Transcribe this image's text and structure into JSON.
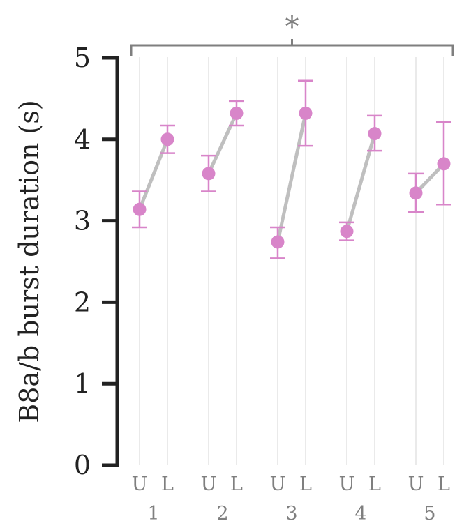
{
  "chart_data": {
    "type": "scatter",
    "ylabel": "B8a/b burst duration (s)",
    "ylim": [
      0,
      5
    ],
    "yticks": [
      "0",
      "1",
      "2",
      "3",
      "4",
      "5"
    ],
    "conditions": [
      "U",
      "L"
    ],
    "groups": [
      "1",
      "2",
      "3",
      "4",
      "5"
    ],
    "series": [
      {
        "values": [
          {
            "group": "1",
            "U": 3.14,
            "U_err": [
              2.92,
              3.36
            ],
            "L": 4.0,
            "L_err": [
              3.83,
              4.17
            ]
          },
          {
            "group": "2",
            "U": 3.58,
            "U_err": [
              3.36,
              3.8
            ],
            "L": 4.32,
            "L_err": [
              4.17,
              4.47
            ]
          },
          {
            "group": "3",
            "U": 2.74,
            "U_err": [
              2.54,
              2.92
            ],
            "L": 4.32,
            "L_err": [
              3.92,
              4.72
            ]
          },
          {
            "group": "4",
            "U": 2.87,
            "U_err": [
              2.76,
              2.98
            ],
            "L": 4.07,
            "L_err": [
              3.86,
              4.29
            ]
          },
          {
            "group": "5",
            "U": 3.34,
            "U_err": [
              3.11,
              3.58
            ],
            "L": 3.7,
            "L_err": [
              3.2,
              4.21
            ]
          }
        ]
      }
    ],
    "significance": {
      "label": "*",
      "spans": "all groups"
    },
    "grid": "vertical",
    "colors": {
      "marker": "#d885c9",
      "connector": "#bfbfbf",
      "axis": "#222222",
      "grid": "#e3e3e3",
      "bracket": "#7f7f7f",
      "tick_text": "#7f7f7f"
    }
  }
}
